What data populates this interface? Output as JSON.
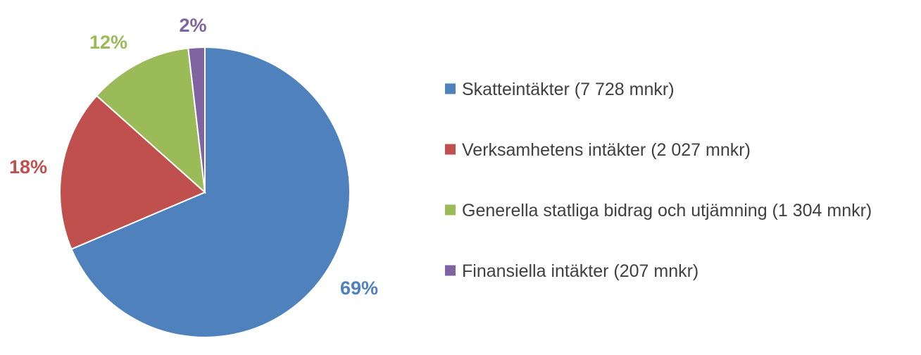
{
  "chart_data": {
    "type": "pie",
    "title": "",
    "start_angle_deg": 0,
    "direction": "clockwise",
    "legend_position": "right",
    "slices": [
      {
        "label": "Skatteintäkter (7 728 mnkr)",
        "value": 7728,
        "percent_label": "69%",
        "color": "#4F81BD"
      },
      {
        "label": "Verksamhetens intäkter (2 027 mnkr)",
        "value": 2027,
        "percent_label": "18%",
        "color": "#C0504D"
      },
      {
        "label": "Generella statliga bidrag och utjämning (1 304 mnkr)",
        "value": 1304,
        "percent_label": "12%",
        "color": "#9BBB59"
      },
      {
        "label": "Finansiella intäkter (207 mnkr)",
        "value": 207,
        "percent_label": "2%",
        "color": "#8064A2"
      }
    ]
  }
}
